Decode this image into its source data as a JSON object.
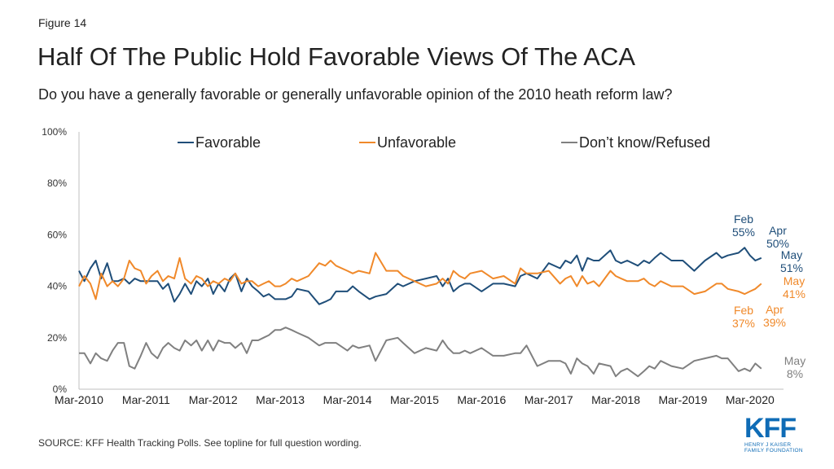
{
  "figure_label": "Figure 14",
  "title": "Half Of The Public Hold Favorable Views Of The ACA",
  "subtitle": "Do you have a generally favorable or generally unfavorable opinion of the 2010 heath reform law?",
  "source": "SOURCE: KFF Health Tracking Polls. See topline for full question wording.",
  "logo": {
    "text": "KFF",
    "line1": "HENRY J KAISER",
    "line2": "FAMILY FOUNDATION"
  },
  "chart_data": {
    "type": "line",
    "x_tick_labels": [
      "Mar-2010",
      "Mar-2011",
      "Mar-2012",
      "Mar-2013",
      "Mar-2014",
      "Mar-2015",
      "Mar-2016",
      "Mar-2017",
      "Mar-2018",
      "Mar-2019",
      "Mar-2020"
    ],
    "y_tick_labels": [
      "0%",
      "20%",
      "40%",
      "60%",
      "80%",
      "100%"
    ],
    "ylim": [
      0,
      100
    ],
    "xlim": [
      0,
      10.5
    ],
    "grid": false,
    "legend_position": "top",
    "series": [
      {
        "name": "Favorable",
        "color": "#1f4e79",
        "x": [
          0,
          0.08,
          0.17,
          0.25,
          0.33,
          0.42,
          0.5,
          0.58,
          0.67,
          0.75,
          0.83,
          0.92,
          1,
          1.08,
          1.17,
          1.25,
          1.33,
          1.42,
          1.5,
          1.58,
          1.67,
          1.75,
          1.83,
          1.92,
          2,
          2.08,
          2.17,
          2.25,
          2.33,
          2.42,
          2.5,
          2.58,
          2.67,
          2.75,
          2.83,
          2.92,
          3,
          3.08,
          3.17,
          3.25,
          3.42,
          3.58,
          3.67,
          3.75,
          3.83,
          4,
          4.08,
          4.17,
          4.33,
          4.42,
          4.58,
          4.75,
          4.83,
          5,
          5.17,
          5.33,
          5.42,
          5.5,
          5.58,
          5.67,
          5.75,
          5.83,
          6,
          6.17,
          6.33,
          6.5,
          6.58,
          6.67,
          6.83,
          7,
          7.17,
          7.25,
          7.33,
          7.42,
          7.5,
          7.58,
          7.67,
          7.75,
          7.92,
          8,
          8.08,
          8.17,
          8.33,
          8.42,
          8.5,
          8.58,
          8.67,
          8.83,
          9,
          9.17,
          9.33,
          9.5,
          9.58,
          9.67,
          9.83,
          9.92,
          10,
          10.08,
          10.17
        ],
        "y": [
          46,
          42,
          47,
          50,
          43,
          49,
          42,
          42,
          43,
          41,
          43,
          42,
          42,
          42,
          42,
          39,
          41,
          34,
          37,
          41,
          37,
          42,
          40,
          43,
          37,
          41,
          38,
          43,
          45,
          38,
          43,
          40,
          38,
          36,
          37,
          35,
          35,
          35,
          36,
          39,
          38,
          33,
          34,
          35,
          38,
          38,
          40,
          38,
          35,
          36,
          37,
          41,
          40,
          42,
          43,
          44,
          40,
          43,
          38,
          40,
          41,
          41,
          38,
          41,
          41,
          40,
          44,
          45,
          43,
          49,
          47,
          50,
          49,
          52,
          46,
          51,
          50,
          50,
          54,
          50,
          49,
          50,
          48,
          50,
          49,
          51,
          53,
          50,
          50,
          46,
          50,
          53,
          51,
          52,
          53,
          55,
          52,
          50,
          51
        ]
      },
      {
        "name": "Unfavorable",
        "color": "#f0892a",
        "x": [
          0,
          0.08,
          0.17,
          0.25,
          0.33,
          0.42,
          0.5,
          0.58,
          0.67,
          0.75,
          0.83,
          0.92,
          1,
          1.08,
          1.17,
          1.25,
          1.33,
          1.42,
          1.5,
          1.58,
          1.67,
          1.75,
          1.83,
          1.92,
          2,
          2.08,
          2.17,
          2.25,
          2.33,
          2.42,
          2.5,
          2.58,
          2.67,
          2.75,
          2.83,
          2.92,
          3,
          3.08,
          3.17,
          3.25,
          3.42,
          3.58,
          3.67,
          3.75,
          3.83,
          4,
          4.08,
          4.17,
          4.33,
          4.42,
          4.58,
          4.75,
          4.83,
          5,
          5.17,
          5.33,
          5.42,
          5.5,
          5.58,
          5.67,
          5.75,
          5.83,
          6,
          6.17,
          6.33,
          6.5,
          6.58,
          6.67,
          6.83,
          7,
          7.17,
          7.25,
          7.33,
          7.42,
          7.5,
          7.58,
          7.67,
          7.75,
          7.92,
          8,
          8.08,
          8.17,
          8.33,
          8.42,
          8.5,
          8.58,
          8.67,
          8.83,
          9,
          9.17,
          9.33,
          9.5,
          9.58,
          9.67,
          9.83,
          9.92,
          10,
          10.08,
          10.17
        ],
        "y": [
          40,
          44,
          41,
          35,
          45,
          40,
          42,
          40,
          43,
          50,
          47,
          46,
          41,
          44,
          46,
          42,
          44,
          43,
          51,
          43,
          41,
          44,
          43,
          40,
          42,
          41,
          43,
          42,
          45,
          41,
          42,
          42,
          40,
          41,
          42,
          40,
          40,
          41,
          43,
          42,
          44,
          49,
          48,
          50,
          48,
          46,
          45,
          46,
          45,
          53,
          46,
          46,
          44,
          42,
          40,
          41,
          43,
          41,
          46,
          44,
          43,
          45,
          46,
          43,
          44,
          41,
          47,
          45,
          45,
          46,
          41,
          43,
          44,
          40,
          44,
          41,
          42,
          40,
          46,
          44,
          43,
          42,
          42,
          43,
          41,
          40,
          42,
          40,
          40,
          37,
          38,
          41,
          41,
          39,
          38,
          37,
          38,
          39,
          41
        ]
      },
      {
        "name": "Don’t know/Refused",
        "color": "#808080",
        "x": [
          0,
          0.08,
          0.17,
          0.25,
          0.33,
          0.42,
          0.5,
          0.58,
          0.67,
          0.75,
          0.83,
          0.92,
          1,
          1.08,
          1.17,
          1.25,
          1.33,
          1.42,
          1.5,
          1.58,
          1.67,
          1.75,
          1.83,
          1.92,
          2,
          2.08,
          2.17,
          2.25,
          2.33,
          2.42,
          2.5,
          2.58,
          2.67,
          2.75,
          2.83,
          2.92,
          3,
          3.08,
          3.17,
          3.25,
          3.42,
          3.58,
          3.67,
          3.75,
          3.83,
          4,
          4.08,
          4.17,
          4.33,
          4.42,
          4.58,
          4.75,
          4.83,
          5,
          5.17,
          5.33,
          5.42,
          5.5,
          5.58,
          5.67,
          5.75,
          5.83,
          6,
          6.17,
          6.33,
          6.5,
          6.58,
          6.67,
          6.83,
          7,
          7.17,
          7.25,
          7.33,
          7.42,
          7.5,
          7.58,
          7.67,
          7.75,
          7.92,
          8,
          8.08,
          8.17,
          8.33,
          8.42,
          8.5,
          8.58,
          8.67,
          8.83,
          9,
          9.17,
          9.33,
          9.5,
          9.58,
          9.67,
          9.83,
          9.92,
          10,
          10.08,
          10.17
        ],
        "y": [
          14,
          14,
          10,
          14,
          12,
          11,
          15,
          18,
          18,
          9,
          8,
          13,
          18,
          14,
          12,
          16,
          18,
          16,
          15,
          19,
          17,
          19,
          15,
          19,
          15,
          19,
          18,
          18,
          16,
          18,
          14,
          19,
          19,
          20,
          21,
          23,
          23,
          24,
          23,
          22,
          20,
          17,
          18,
          18,
          18,
          15,
          17,
          16,
          17,
          11,
          19,
          20,
          18,
          14,
          16,
          15,
          19,
          16,
          14,
          14,
          15,
          14,
          16,
          13,
          13,
          14,
          14,
          17,
          9,
          11,
          11,
          10,
          6,
          12,
          10,
          9,
          6,
          10,
          9,
          5,
          7,
          8,
          5,
          7,
          9,
          8,
          11,
          9,
          8,
          11,
          12,
          13,
          12,
          12,
          7,
          8,
          7,
          10,
          8
        ]
      }
    ],
    "annotations": [
      {
        "series": "Favorable",
        "text": [
          "Feb",
          "55%"
        ]
      },
      {
        "series": "Favorable",
        "text": [
          "Apr",
          "50%"
        ]
      },
      {
        "series": "Favorable",
        "text": [
          "May",
          "51%"
        ]
      },
      {
        "series": "Unfavorable",
        "text": [
          "May",
          "41%"
        ]
      },
      {
        "series": "Unfavorable",
        "text": [
          "Apr",
          "39%"
        ]
      },
      {
        "series": "Unfavorable",
        "text": [
          "Feb",
          "37%"
        ]
      },
      {
        "series": "Don’t know/Refused",
        "text": [
          "May",
          "8%"
        ]
      }
    ]
  }
}
